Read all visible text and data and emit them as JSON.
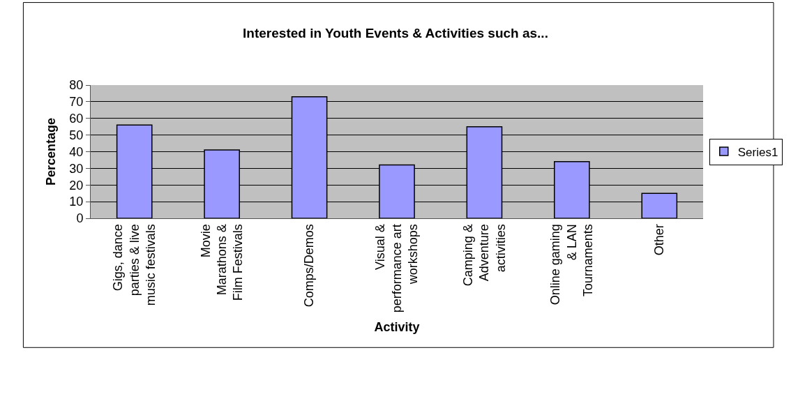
{
  "chart_data": {
    "type": "bar",
    "title": "Interested in Youth Events & Activities such as...",
    "xlabel": "Activity",
    "ylabel": "Percentage",
    "categories": [
      "Gigs, dance\nparties & live\nmusic festivals",
      "Movie\nMarathons &\nFilm Festivals",
      "Comps/Demos",
      "Visual &\nperformance art\nworkshops",
      "Camping &\nAdventure\nactivities",
      "Online gaming\n& LAN\nTournaments",
      "Other"
    ],
    "series": [
      {
        "name": "Series1",
        "color": "#9999ff",
        "values": [
          56,
          41,
          73,
          32,
          55,
          34,
          15
        ]
      }
    ],
    "ylim": [
      0,
      80
    ],
    "yticks": [
      0,
      10,
      20,
      30,
      40,
      50,
      60,
      70,
      80
    ],
    "grid": "y",
    "legend": "right"
  }
}
